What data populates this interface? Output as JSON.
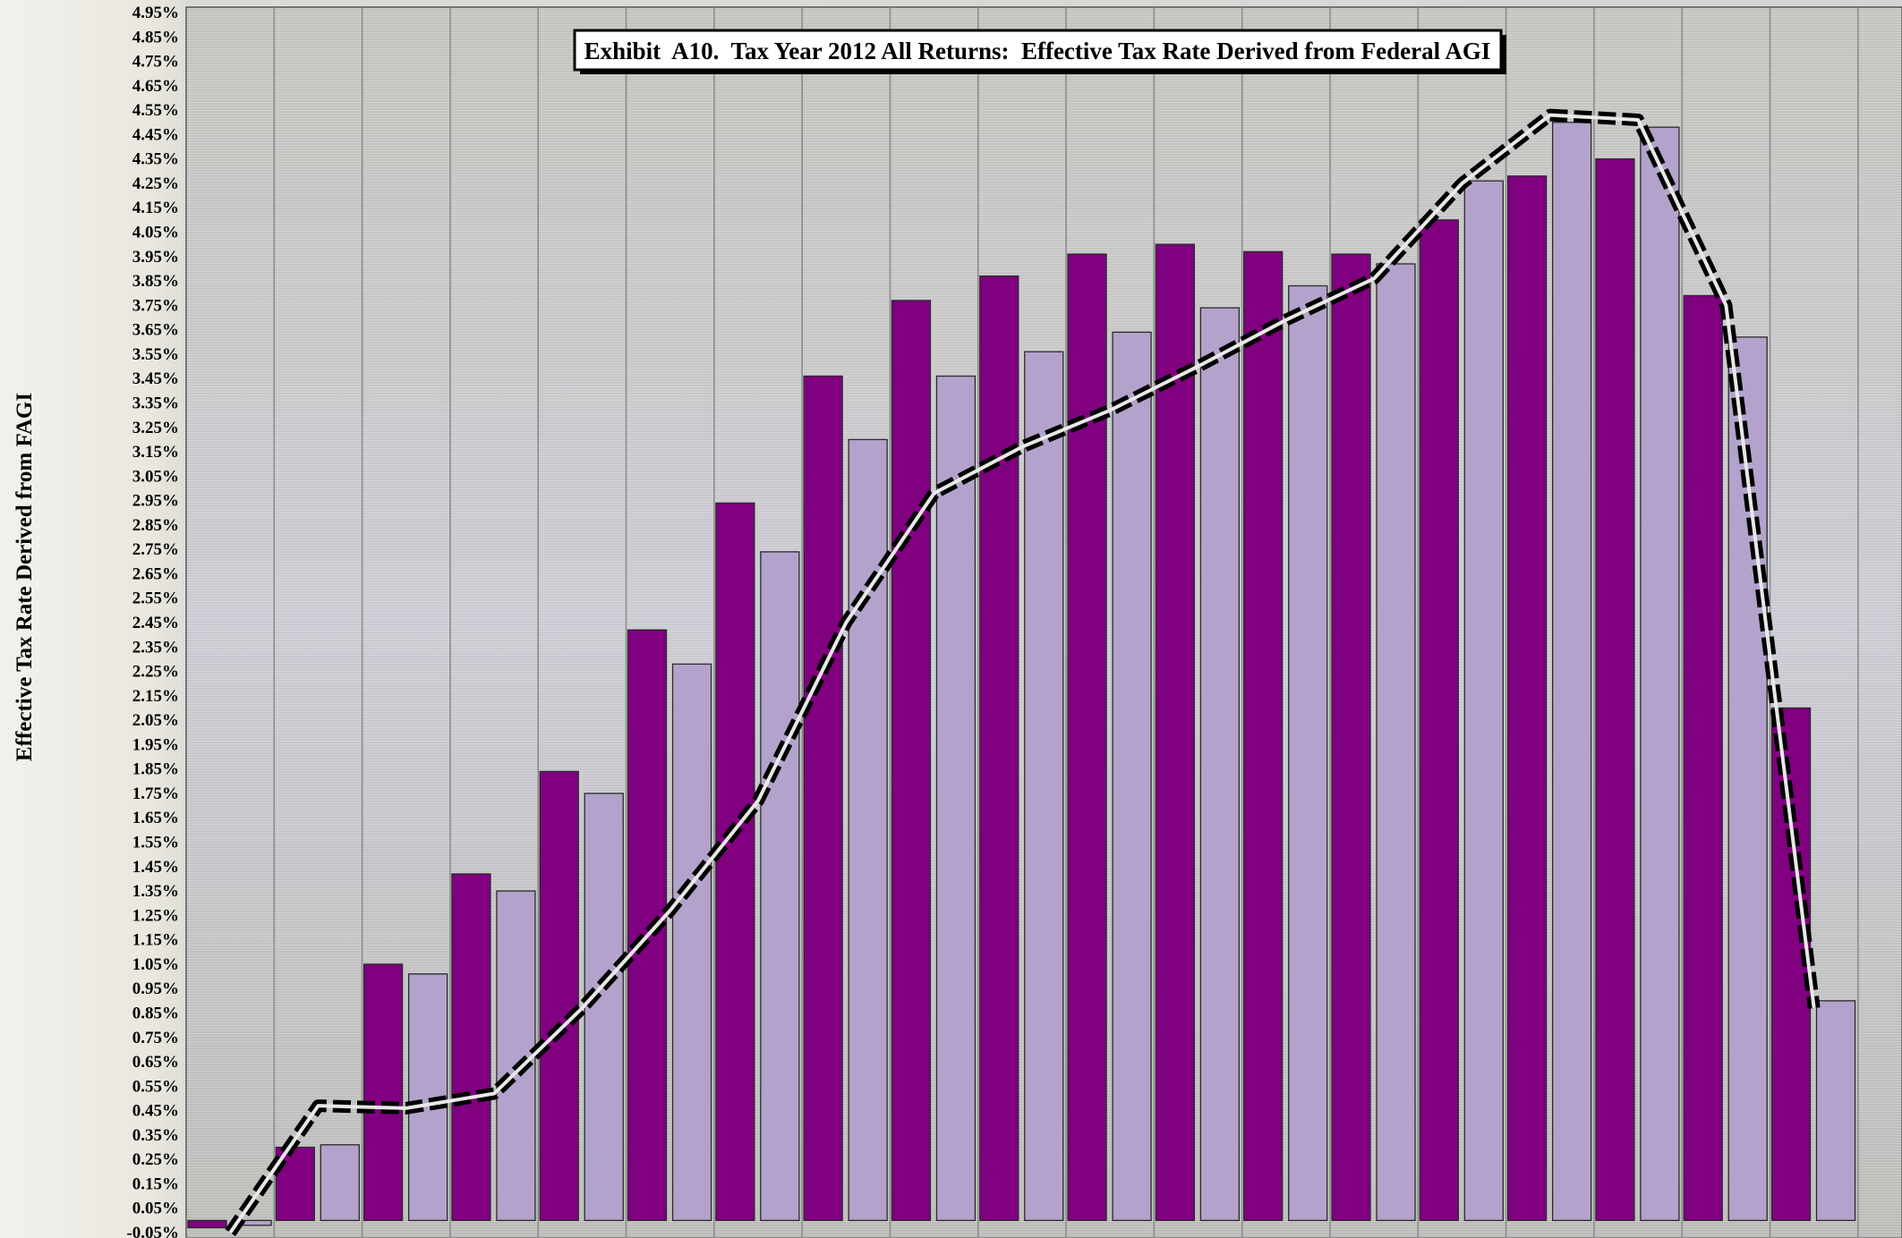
{
  "chart_data": {
    "type": "bar",
    "title": "Exhibit  A10.  Tax Year 2012 All Returns:  Effective Tax Rate Derived from Federal AGI",
    "xlabel": "",
    "ylabel": "Effective Tax Rate Derived from FAGI",
    "ylim": [
      -0.0005,
      0.05
    ],
    "y_ticks": [
      "4.95%",
      "4.85%",
      "4.75%",
      "4.65%",
      "4.55%",
      "4.45%",
      "4.35%",
      "4.25%",
      "4.15%",
      "4.05%",
      "3.95%",
      "3.85%",
      "3.75%",
      "3.65%",
      "3.55%",
      "3.45%",
      "3.35%",
      "3.25%",
      "3.15%",
      "3.05%",
      "2.95%",
      "2.85%",
      "2.75%",
      "2.65%",
      "2.55%",
      "2.45%",
      "2.35%",
      "2.25%",
      "2.15%",
      "2.05%",
      "1.95%",
      "1.85%",
      "1.75%",
      "1.65%",
      "1.55%",
      "1.45%",
      "1.35%",
      "1.25%",
      "1.15%",
      "1.05%",
      "0.95%",
      "0.85%",
      "0.75%",
      "0.65%",
      "0.55%",
      "0.45%",
      "0.35%",
      "0.25%",
      "0.15%",
      "0.05%",
      "-0.05%"
    ],
    "grid": true,
    "legend": "none",
    "category_count": 19,
    "series": [
      {
        "type": "bar",
        "color": "#800080",
        "values": [
          -0.0003,
          0.003,
          0.0105,
          0.0142,
          0.0184,
          0.0242,
          0.0294,
          0.0346,
          0.0377,
          0.0387,
          0.0396,
          0.04,
          0.0397,
          0.0396,
          0.041,
          0.0428,
          0.0435,
          0.0379,
          0.021
        ]
      },
      {
        "type": "bar",
        "color": "#b3a3cc",
        "values": [
          -0.0002,
          0.0031,
          0.0101,
          0.0135,
          0.0175,
          0.0228,
          0.0274,
          0.032,
          0.0346,
          0.0356,
          0.0364,
          0.0374,
          0.0383,
          0.0392,
          0.0426,
          0.045,
          0.0448,
          0.0362,
          0.009
        ]
      },
      {
        "type": "line",
        "style": "dashed",
        "color": "#000000",
        "values": [
          -0.0005,
          0.0047,
          0.0046,
          0.0052,
          0.0087,
          0.0127,
          0.0172,
          0.0245,
          0.0298,
          0.0317,
          0.0332,
          0.035,
          0.0369,
          0.0386,
          0.0425,
          0.0453,
          0.0451,
          0.0375,
          0.0087
        ]
      }
    ]
  }
}
